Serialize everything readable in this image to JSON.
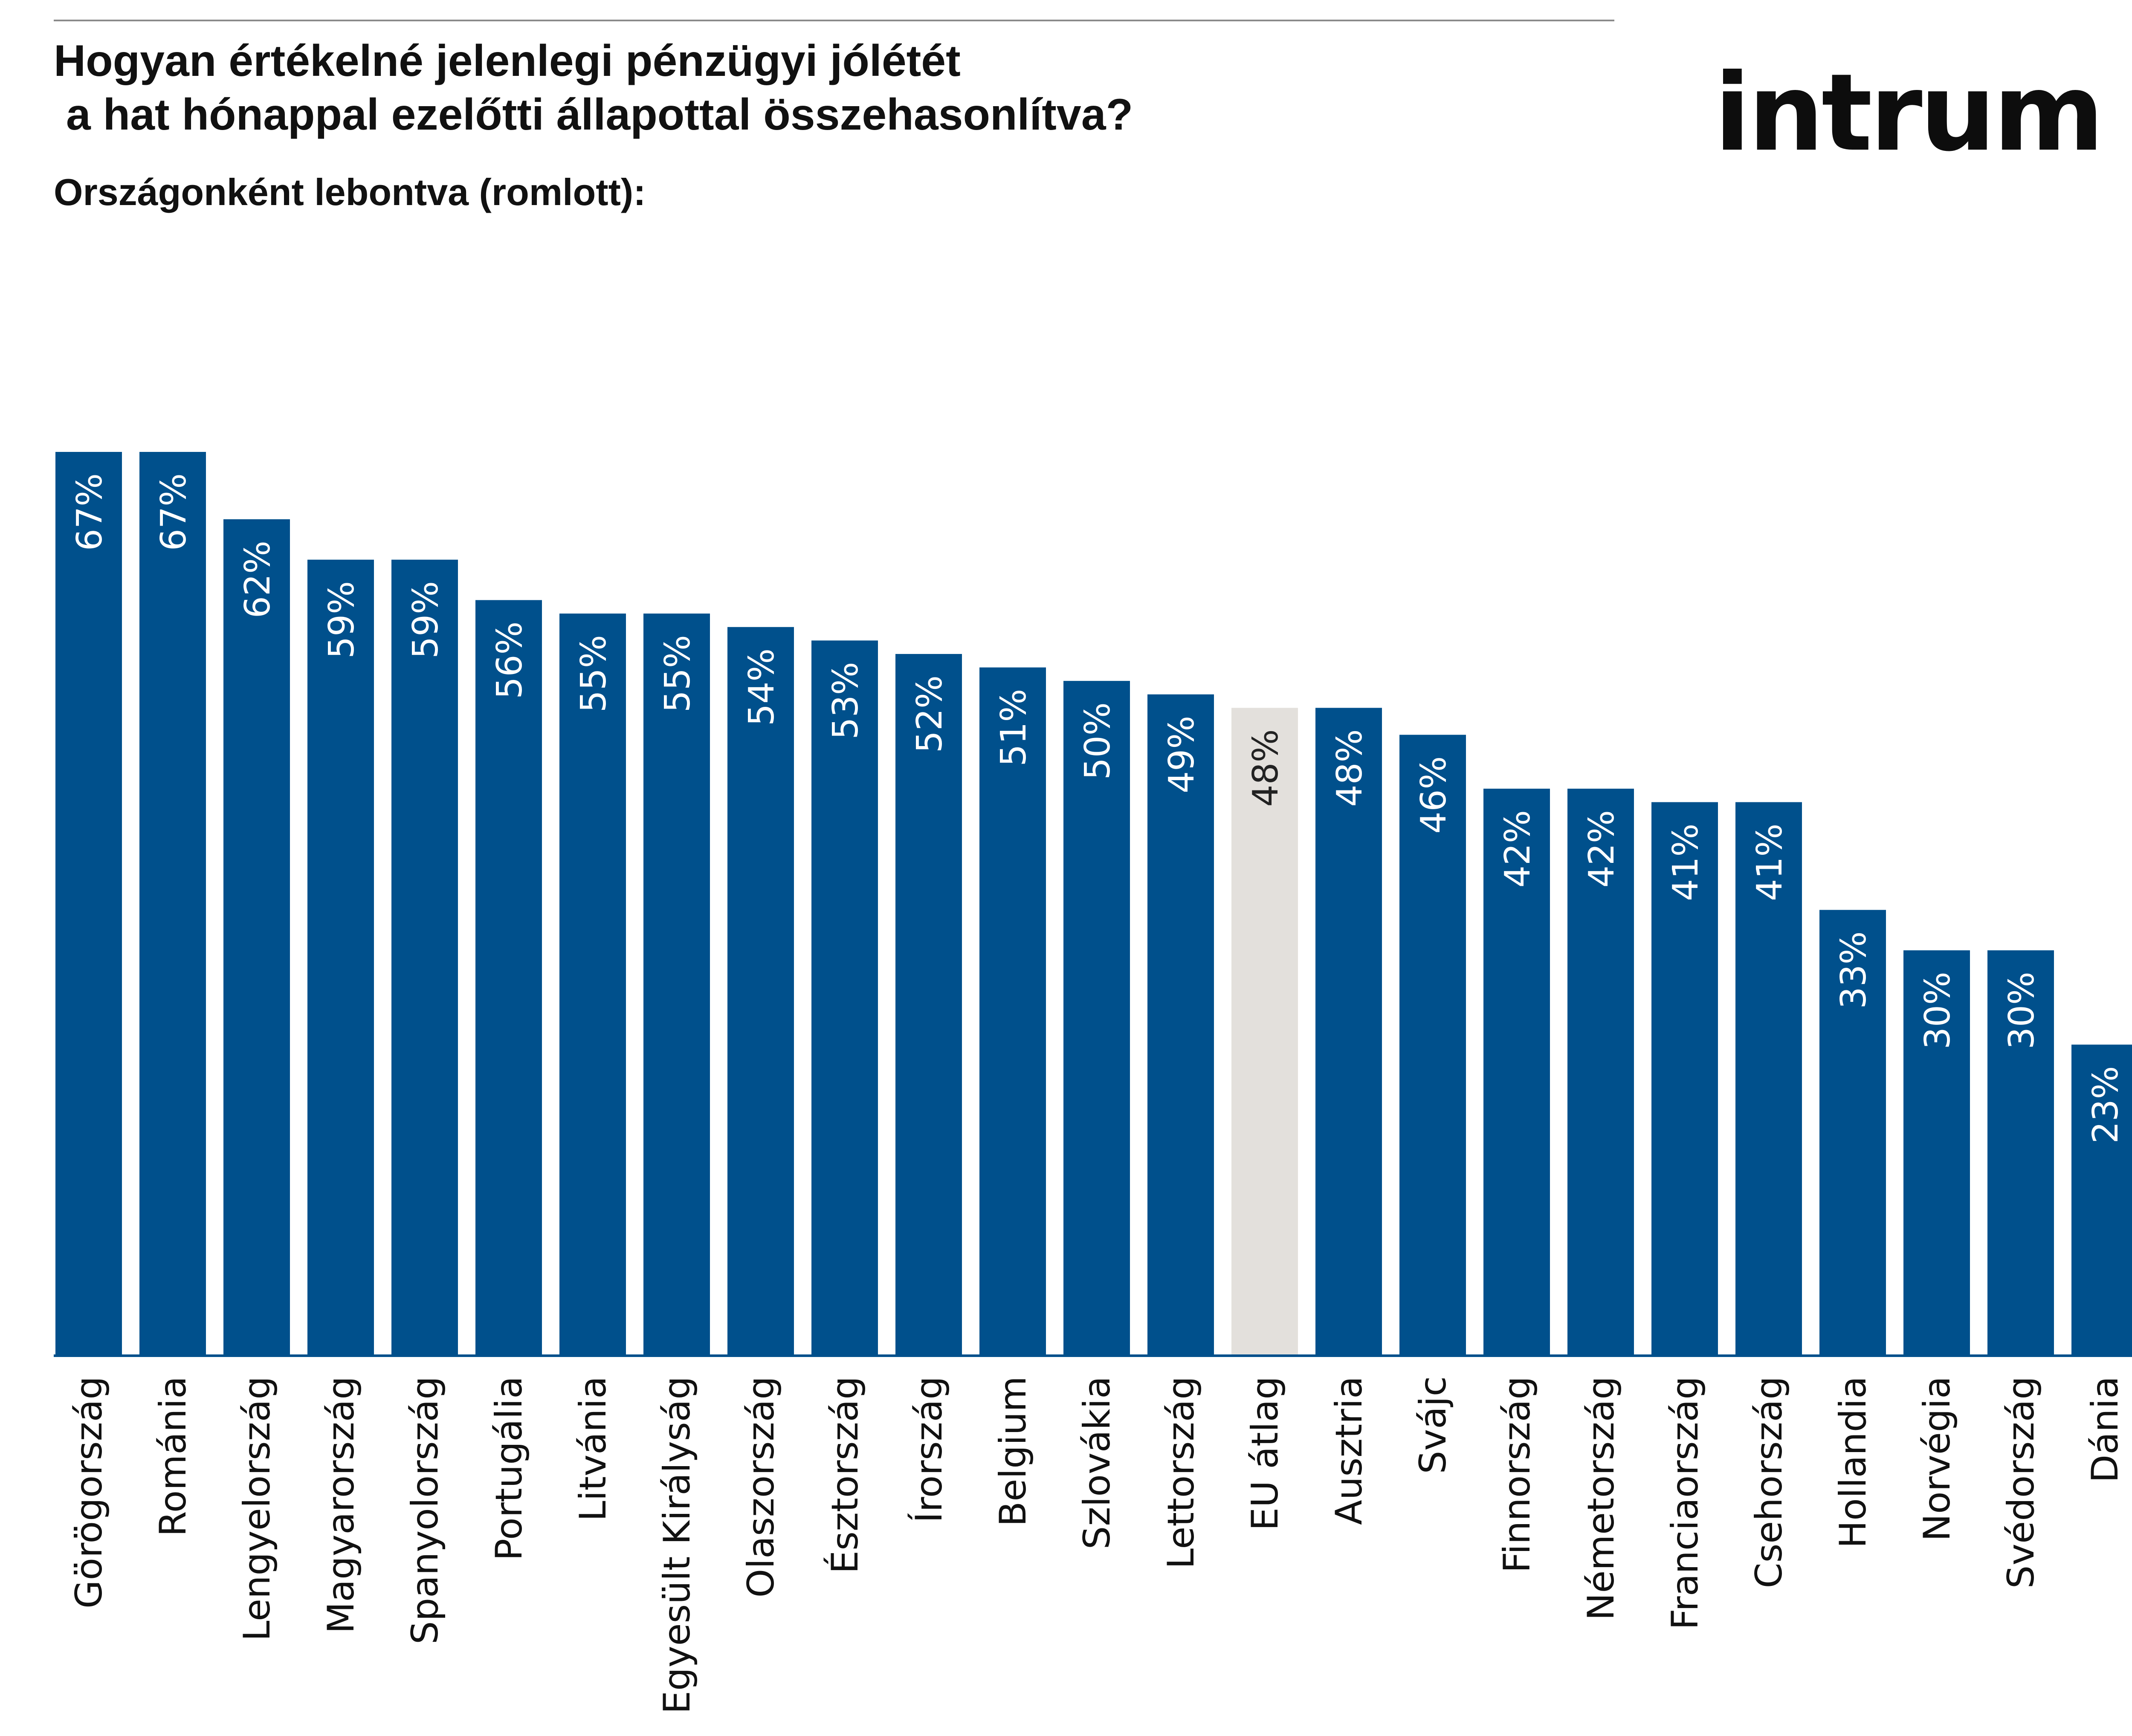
{
  "header": {
    "title": "Hogyan értékelné jelenlegi pénzügyi jólétét\n a hat hónappal ezelőtti állapottal összehasonlítva?",
    "subtitle": "Országonként lebontva (romlott):",
    "logo_text": "intrum"
  },
  "colors": {
    "bar": "#00508c",
    "highlight": "#e3e0dc",
    "value_label": "#ffffff",
    "value_label_highlight": "#222222",
    "baseline": "#00508c",
    "text": "#111111"
  },
  "chart_data": {
    "type": "bar",
    "title": "Hogyan értékelné jelenlegi pénzügyi jólétét a hat hónappal ezelőtti állapottal összehasonlítva?",
    "subtitle": "Országonként lebontva (romlott):",
    "categories": [
      "Görögország",
      "Románia",
      "Lengyelország",
      "Magyarország",
      "Spanyolország",
      "Portugália",
      "Litvánia",
      "Egyesült Királyság",
      "Olaszország",
      "Észtország",
      "Írország",
      "Belgium",
      "Szlovákia",
      "Lettország",
      "EU átlag",
      "Ausztria",
      "Svájc",
      "Finnország",
      "Németország",
      "Franciaország",
      "Csehország",
      "Hollandia",
      "Norvégia",
      "Svédország",
      "Dánia"
    ],
    "values": [
      67,
      67,
      62,
      59,
      59,
      56,
      55,
      55,
      54,
      53,
      52,
      51,
      50,
      49,
      48,
      48,
      46,
      42,
      42,
      41,
      41,
      33,
      30,
      30,
      23
    ],
    "value_labels": [
      "67%",
      "67%",
      "62%",
      "59%",
      "59%",
      "56%",
      "55%",
      "55%",
      "54%",
      "53%",
      "52%",
      "51%",
      "50%",
      "49%",
      "48%",
      "48%",
      "46%",
      "42%",
      "42%",
      "41%",
      "41%",
      "33%",
      "30%",
      "30%",
      "23%"
    ],
    "highlight_category": "EU átlag",
    "ylim": [
      0,
      67
    ],
    "xlabel": "",
    "ylabel": "",
    "grid": false,
    "legend": "none"
  }
}
